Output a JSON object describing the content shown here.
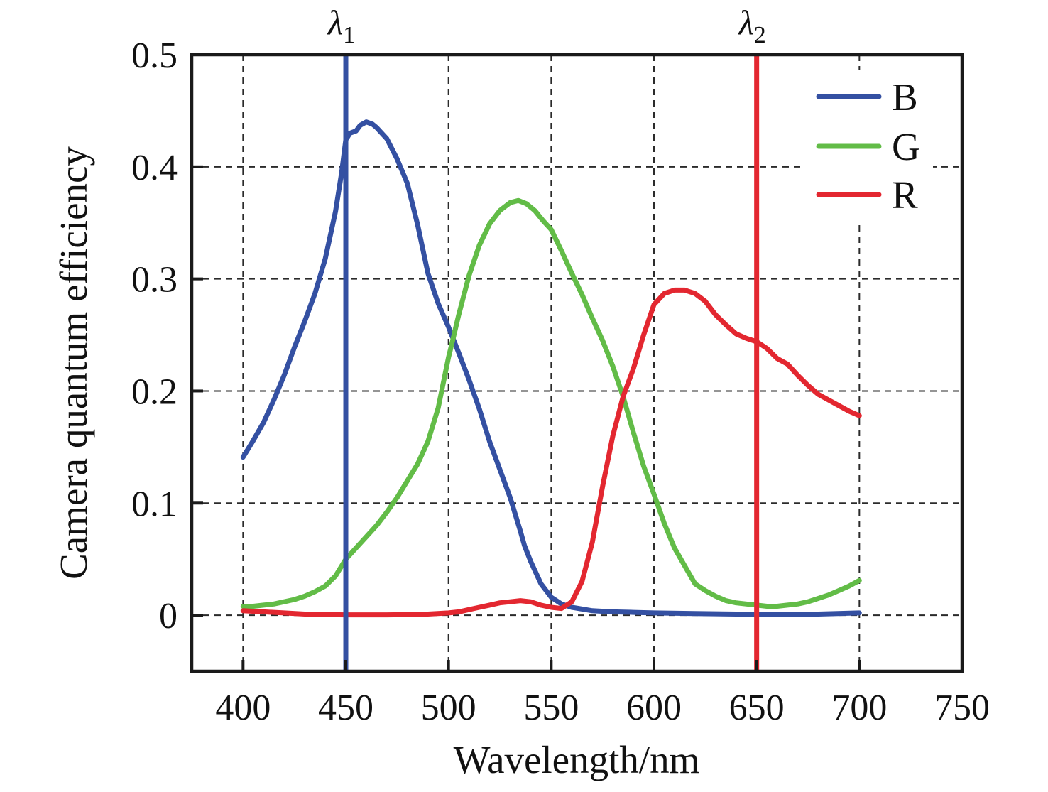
{
  "chart_data": {
    "type": "line",
    "title": "",
    "xlabel": "Wavelength/nm",
    "ylabel": "Camera quantum efficiency",
    "xlim": [
      375,
      750
    ],
    "ylim": [
      -0.05,
      0.5
    ],
    "xticks": [
      400,
      450,
      500,
      550,
      600,
      650,
      700,
      750
    ],
    "yticks": [
      0,
      0.1,
      0.2,
      0.3,
      0.4,
      0.5
    ],
    "grid": "dashed gridlines at x 400-700 and y 0-0.4",
    "legend_position": "upper right, no border, white background",
    "axis_color": "#1a1a1a",
    "grid_color": "#2b2b2b",
    "vlines": [
      {
        "x": 450,
        "color": "#3450a2",
        "symbol": "λ",
        "subscript": "1"
      },
      {
        "x": 650,
        "color": "#e32730",
        "symbol": "λ",
        "subscript": "2"
      }
    ],
    "series": [
      {
        "name": "B",
        "color": "#3450a2",
        "points": [
          [
            400,
            0.141
          ],
          [
            405,
            0.156
          ],
          [
            410,
            0.172
          ],
          [
            415,
            0.192
          ],
          [
            420,
            0.214
          ],
          [
            425,
            0.239
          ],
          [
            430,
            0.262
          ],
          [
            435,
            0.287
          ],
          [
            440,
            0.318
          ],
          [
            445,
            0.36
          ],
          [
            448,
            0.395
          ],
          [
            450,
            0.424
          ],
          [
            452,
            0.43
          ],
          [
            455,
            0.432
          ],
          [
            457,
            0.437
          ],
          [
            460,
            0.44
          ],
          [
            463,
            0.438
          ],
          [
            465,
            0.435
          ],
          [
            470,
            0.425
          ],
          [
            475,
            0.407
          ],
          [
            480,
            0.385
          ],
          [
            485,
            0.348
          ],
          [
            490,
            0.305
          ],
          [
            495,
            0.278
          ],
          [
            500,
            0.257
          ],
          [
            505,
            0.234
          ],
          [
            510,
            0.21
          ],
          [
            515,
            0.184
          ],
          [
            520,
            0.155
          ],
          [
            525,
            0.13
          ],
          [
            530,
            0.105
          ],
          [
            535,
            0.075
          ],
          [
            537,
            0.062
          ],
          [
            540,
            0.048
          ],
          [
            545,
            0.028
          ],
          [
            550,
            0.016
          ],
          [
            555,
            0.01
          ],
          [
            560,
            0.007
          ],
          [
            570,
            0.004
          ],
          [
            580,
            0.003
          ],
          [
            590,
            0.0025
          ],
          [
            600,
            0.002
          ],
          [
            620,
            0.0015
          ],
          [
            640,
            0.001
          ],
          [
            660,
            0.001
          ],
          [
            680,
            0.001
          ],
          [
            700,
            0.002
          ]
        ]
      },
      {
        "name": "G",
        "color": "#62bc47",
        "points": [
          [
            400,
            0.008
          ],
          [
            405,
            0.008
          ],
          [
            410,
            0.009
          ],
          [
            415,
            0.01
          ],
          [
            420,
            0.012
          ],
          [
            425,
            0.014
          ],
          [
            430,
            0.017
          ],
          [
            435,
            0.021
          ],
          [
            440,
            0.026
          ],
          [
            445,
            0.035
          ],
          [
            450,
            0.05
          ],
          [
            455,
            0.06
          ],
          [
            460,
            0.07
          ],
          [
            465,
            0.08
          ],
          [
            470,
            0.092
          ],
          [
            475,
            0.105
          ],
          [
            480,
            0.12
          ],
          [
            485,
            0.135
          ],
          [
            490,
            0.155
          ],
          [
            495,
            0.185
          ],
          [
            500,
            0.23
          ],
          [
            502,
            0.245
          ],
          [
            505,
            0.268
          ],
          [
            510,
            0.303
          ],
          [
            515,
            0.33
          ],
          [
            520,
            0.349
          ],
          [
            525,
            0.361
          ],
          [
            530,
            0.368
          ],
          [
            534,
            0.37
          ],
          [
            538,
            0.367
          ],
          [
            542,
            0.361
          ],
          [
            546,
            0.352
          ],
          [
            550,
            0.344
          ],
          [
            555,
            0.325
          ],
          [
            560,
            0.305
          ],
          [
            565,
            0.286
          ],
          [
            570,
            0.265
          ],
          [
            575,
            0.245
          ],
          [
            580,
            0.222
          ],
          [
            585,
            0.195
          ],
          [
            590,
            0.163
          ],
          [
            595,
            0.133
          ],
          [
            600,
            0.108
          ],
          [
            605,
            0.082
          ],
          [
            610,
            0.06
          ],
          [
            615,
            0.044
          ],
          [
            620,
            0.028
          ],
          [
            625,
            0.022
          ],
          [
            630,
            0.017
          ],
          [
            635,
            0.013
          ],
          [
            640,
            0.011
          ],
          [
            645,
            0.01
          ],
          [
            650,
            0.009
          ],
          [
            655,
            0.008
          ],
          [
            660,
            0.008
          ],
          [
            665,
            0.009
          ],
          [
            670,
            0.01
          ],
          [
            675,
            0.012
          ],
          [
            680,
            0.015
          ],
          [
            685,
            0.018
          ],
          [
            690,
            0.022
          ],
          [
            695,
            0.026
          ],
          [
            700,
            0.031
          ]
        ]
      },
      {
        "name": "R",
        "color": "#e32730",
        "points": [
          [
            400,
            0.004
          ],
          [
            410,
            0.003
          ],
          [
            420,
            0.002
          ],
          [
            430,
            0.001
          ],
          [
            440,
            0.0005
          ],
          [
            450,
            0.0003
          ],
          [
            460,
            0.0003
          ],
          [
            470,
            0.0003
          ],
          [
            480,
            0.0005
          ],
          [
            490,
            0.001
          ],
          [
            500,
            0.002
          ],
          [
            505,
            0.003
          ],
          [
            510,
            0.005
          ],
          [
            515,
            0.007
          ],
          [
            520,
            0.009
          ],
          [
            525,
            0.011
          ],
          [
            530,
            0.012
          ],
          [
            535,
            0.013
          ],
          [
            540,
            0.012
          ],
          [
            545,
            0.009
          ],
          [
            550,
            0.007
          ],
          [
            555,
            0.006
          ],
          [
            560,
            0.012
          ],
          [
            565,
            0.03
          ],
          [
            570,
            0.065
          ],
          [
            575,
            0.115
          ],
          [
            580,
            0.16
          ],
          [
            585,
            0.195
          ],
          [
            590,
            0.22
          ],
          [
            595,
            0.25
          ],
          [
            600,
            0.277
          ],
          [
            605,
            0.287
          ],
          [
            610,
            0.29
          ],
          [
            615,
            0.29
          ],
          [
            620,
            0.287
          ],
          [
            625,
            0.28
          ],
          [
            630,
            0.268
          ],
          [
            635,
            0.259
          ],
          [
            640,
            0.251
          ],
          [
            645,
            0.247
          ],
          [
            650,
            0.244
          ],
          [
            655,
            0.238
          ],
          [
            660,
            0.229
          ],
          [
            663,
            0.226
          ],
          [
            665,
            0.224
          ],
          [
            670,
            0.214
          ],
          [
            675,
            0.205
          ],
          [
            680,
            0.197
          ],
          [
            685,
            0.192
          ],
          [
            690,
            0.187
          ],
          [
            695,
            0.182
          ],
          [
            700,
            0.178
          ]
        ]
      }
    ]
  },
  "legend": {
    "entries": [
      {
        "label": "B",
        "color": "#3450a2"
      },
      {
        "label": "G",
        "color": "#62bc47"
      },
      {
        "label": "R",
        "color": "#e32730"
      }
    ]
  }
}
